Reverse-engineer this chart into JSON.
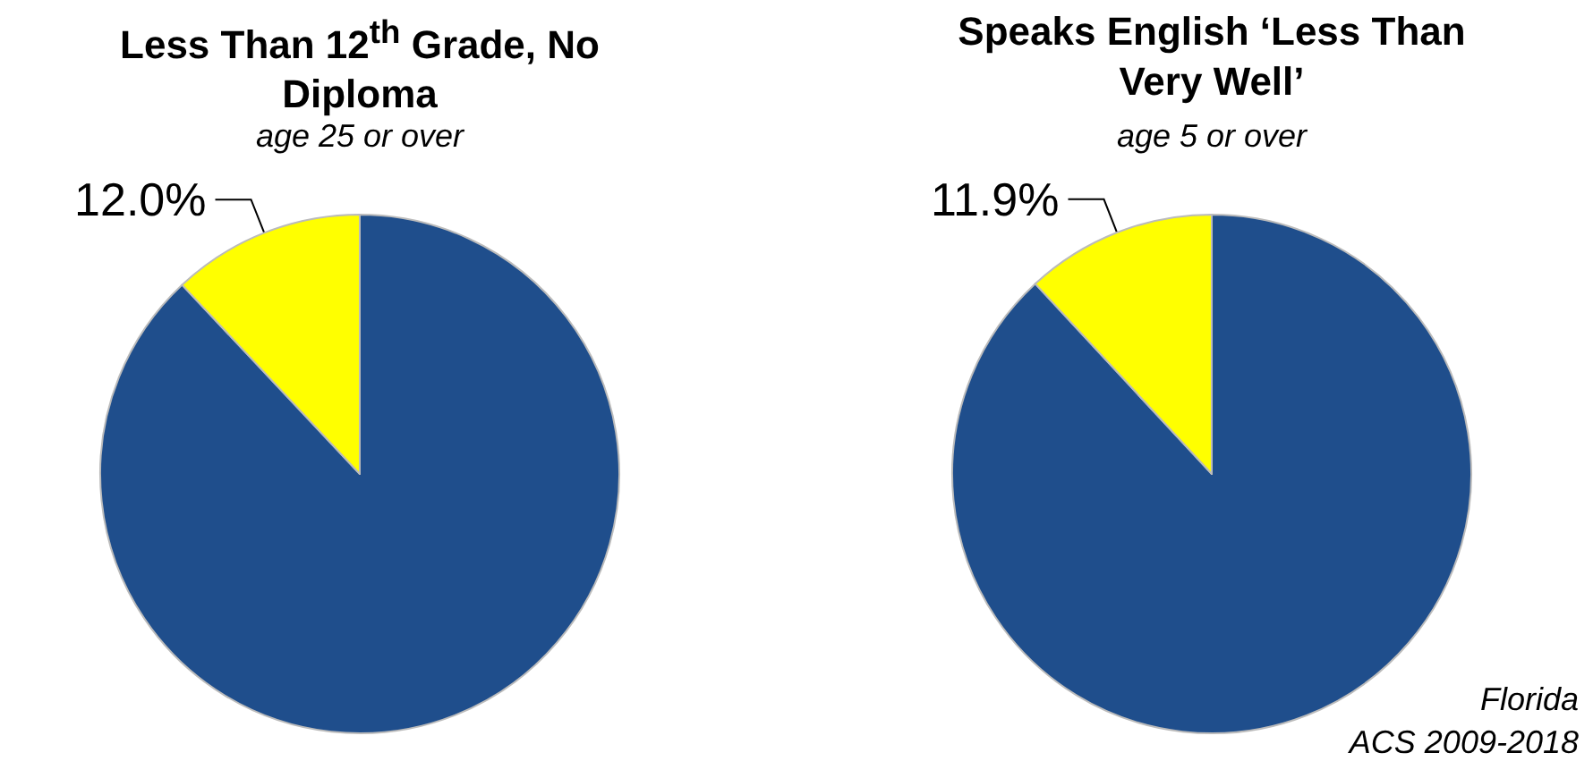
{
  "chart_data": [
    {
      "type": "pie",
      "title": "Less Than 12$^{th}$ Grade, No Diploma",
      "subtitle": "age 25 or over",
      "categories": [
        null,
        null
      ],
      "values": [
        88.0,
        12.0
      ],
      "colors": [
        "#1f4e8c",
        "#ffff00"
      ],
      "value_labels": [
        null,
        "12.0%"
      ]
    },
    {
      "type": "pie",
      "title": "Speaks English ‘Less Than Very Well’",
      "subtitle": "age 5 or over",
      "categories": [
        null,
        null
      ],
      "values": [
        88.1,
        11.9
      ],
      "colors": [
        "#1f4e8c",
        "#ffff00"
      ],
      "value_labels": [
        null,
        "11.9%"
      ],
      "annotations": [
        "Florida",
        "ACS 2009-2018"
      ]
    }
  ]
}
